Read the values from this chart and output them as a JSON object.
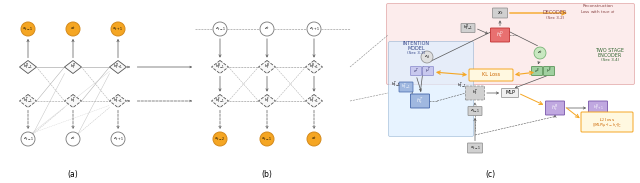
{
  "fig_width": 6.4,
  "fig_height": 1.83,
  "dpi": 100,
  "bg_color": "#ffffff",
  "orange_fc": "#f5a623",
  "orange_ec": "#d4891a",
  "white_fc": "#ffffff",
  "white_ec": "#777777",
  "diam_fc": "#f8f8f8",
  "diam_ec": "#555555",
  "arrow_color": "#555555",
  "orange_arrow": "#f5a623",
  "gray_fc": "#d0d0d0",
  "gray_ec": "#888888",
  "red_fc": "#e87070",
  "red_ec": "#c03030",
  "blue_fc": "#a0b8e0",
  "blue_ec": "#4466aa",
  "green_fc": "#a0d0a0",
  "green_ec": "#448844",
  "purple_fc": "#c0a8e0",
  "purple_ec": "#7755aa",
  "lavender_fc": "#c8c8ee",
  "lavender_ec": "#8888cc",
  "pink_bg": "#fce8e8",
  "pink_bg_ec": "#e0a0a0",
  "blue_bg": "#ddeeff",
  "blue_bg_ec": "#88aacc",
  "subtitle_a": "(a)",
  "subtitle_b": "(b)",
  "subtitle_c": "(c)"
}
